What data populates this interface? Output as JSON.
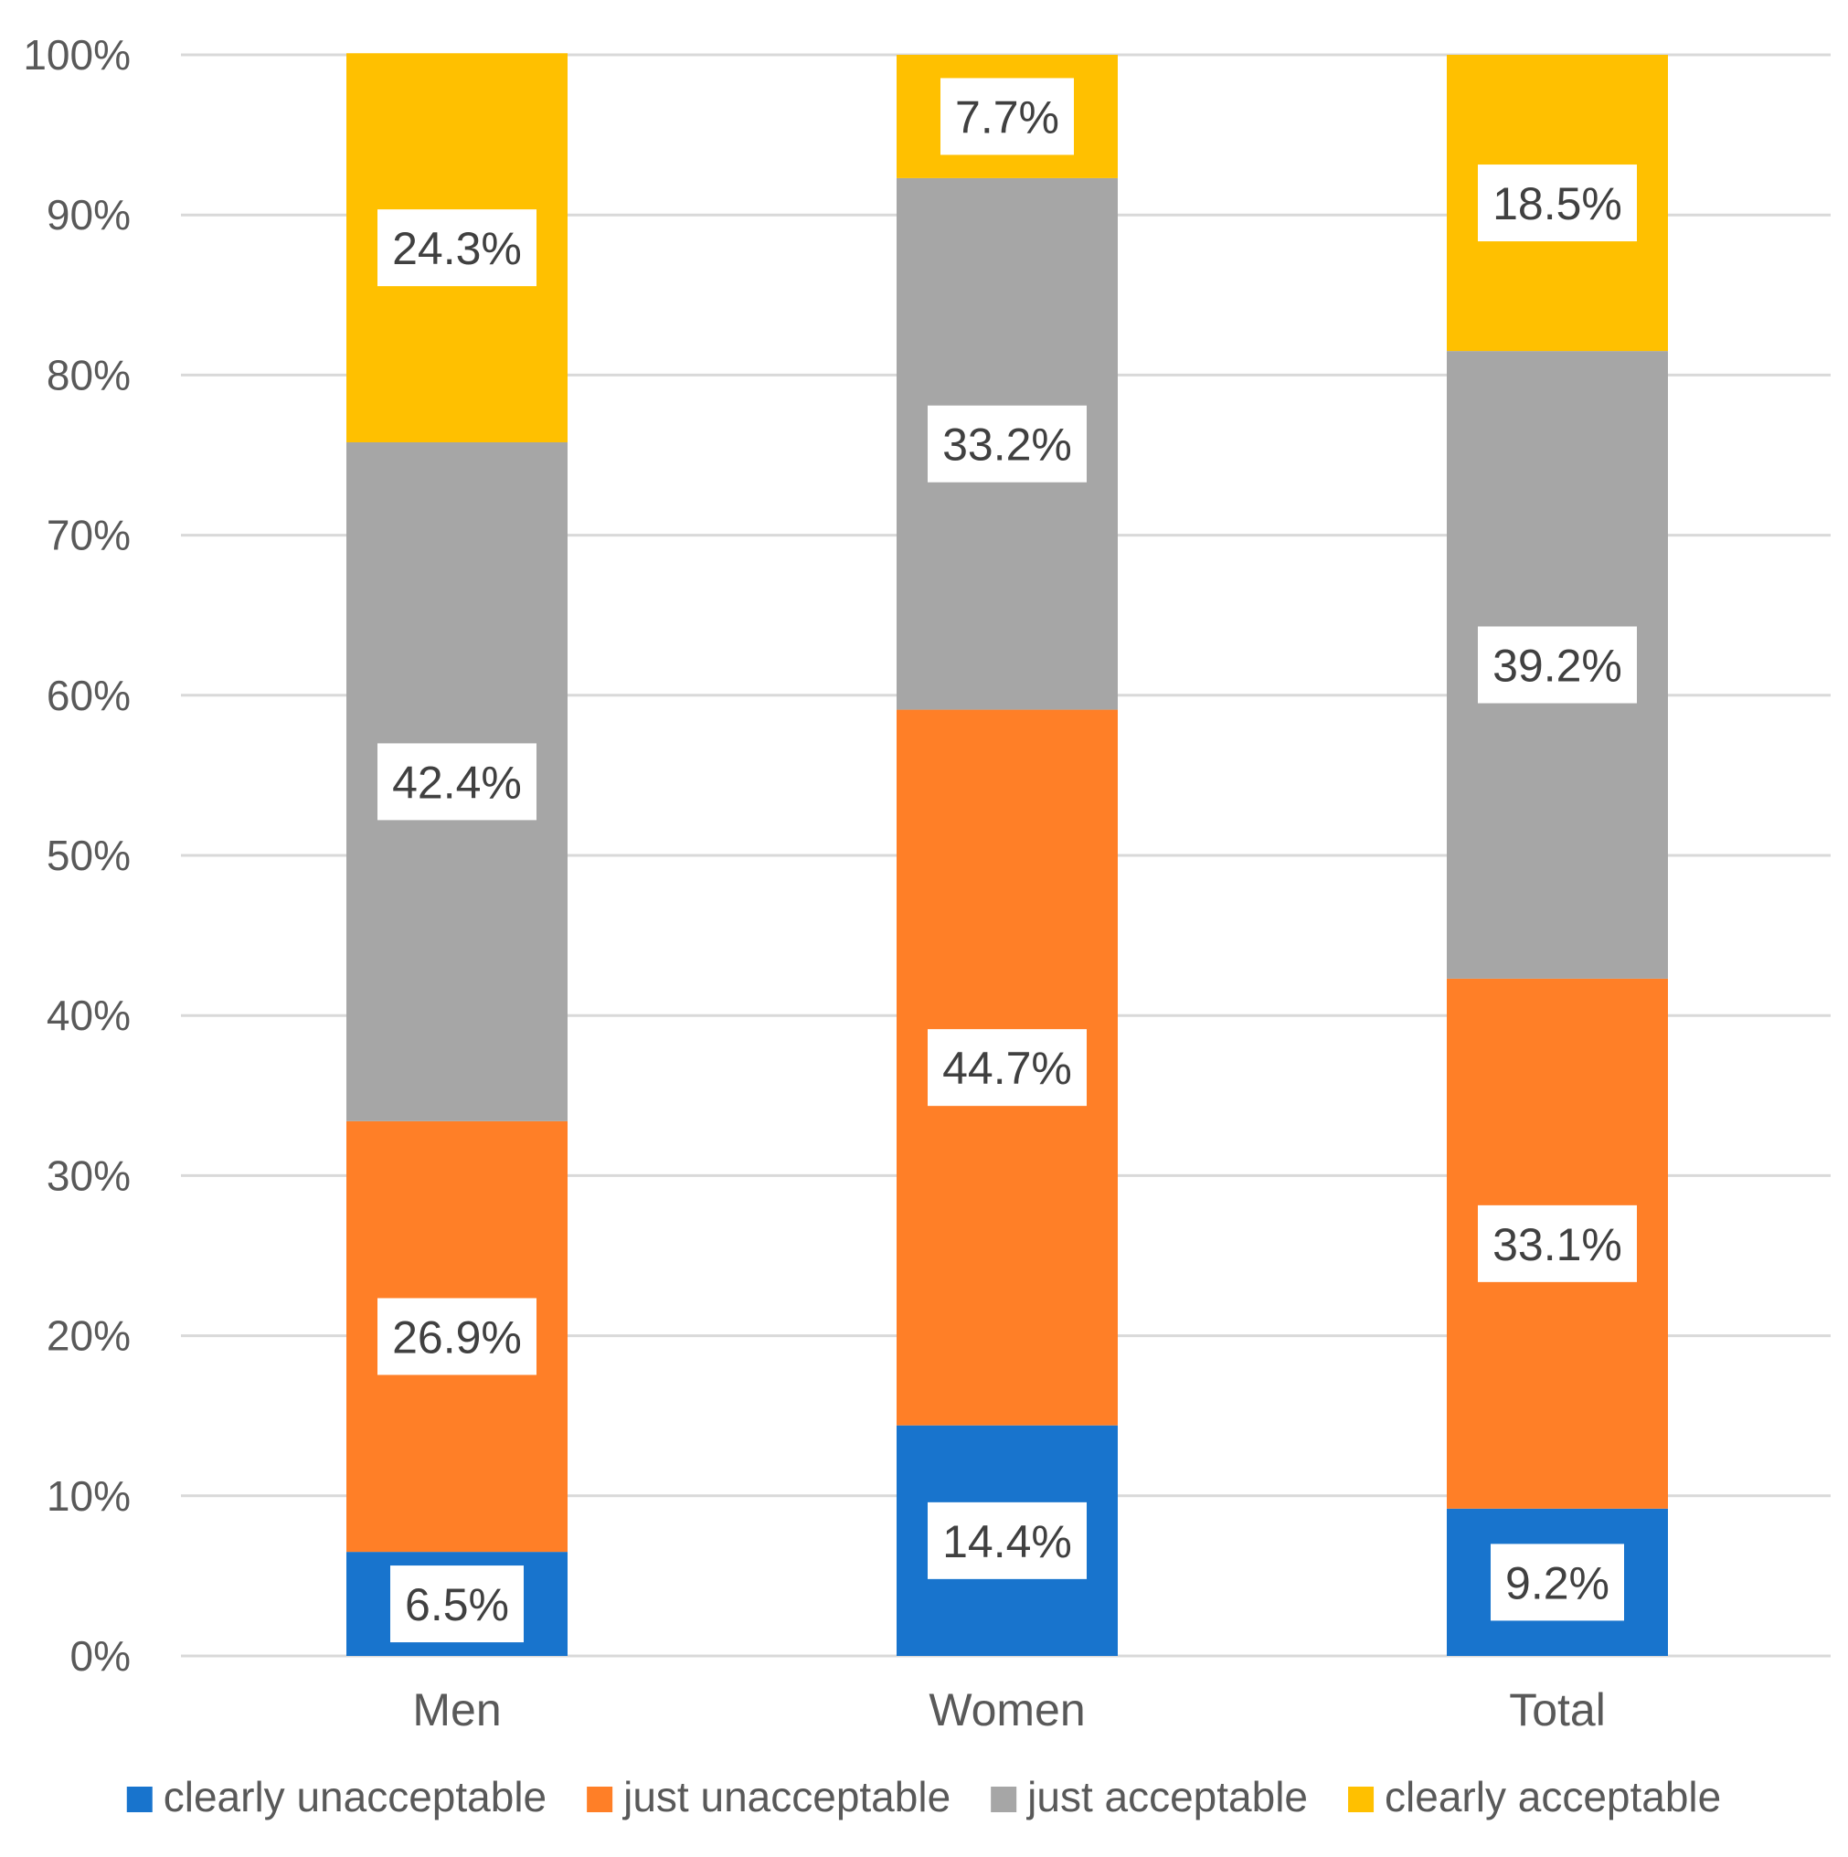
{
  "chart_data": {
    "type": "bar",
    "stacked": true,
    "categories": [
      "Men",
      "Women",
      "Total"
    ],
    "series": [
      {
        "name": "clearly unacceptable",
        "color": "#1874CD",
        "values": [
          6.5,
          14.4,
          9.2
        ],
        "labels": [
          "6.5%",
          "14.4%",
          "9.2%"
        ]
      },
      {
        "name": "just unacceptable",
        "color": "#FF7F27",
        "values": [
          26.9,
          44.7,
          33.1
        ],
        "labels": [
          "26.9%",
          "44.7%",
          "33.1%"
        ]
      },
      {
        "name": "just acceptable",
        "color": "#A6A6A6",
        "values": [
          42.4,
          33.2,
          39.2
        ],
        "labels": [
          "42.4%",
          "33.2%",
          "39.2%"
        ]
      },
      {
        "name": "clearly acceptable",
        "color": "#FFC000",
        "values": [
          24.3,
          7.7,
          18.5
        ],
        "labels": [
          "24.3%",
          "7.7%",
          "18.5%"
        ]
      }
    ],
    "yticks": [
      "0%",
      "10%",
      "20%",
      "30%",
      "40%",
      "50%",
      "60%",
      "70%",
      "80%",
      "90%",
      "100%"
    ],
    "ylim": [
      0,
      100
    ],
    "title": "",
    "xlabel": "",
    "ylabel": "",
    "grid": true,
    "legend_position": "bottom"
  }
}
